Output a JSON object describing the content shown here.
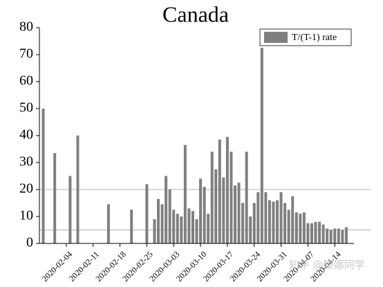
{
  "chart_data": {
    "type": "bar",
    "title": "Canada",
    "x": [
      "2020-01-29",
      "2020-02-01",
      "2020-02-05",
      "2020-02-07",
      "2020-02-15",
      "2020-02-21",
      "2020-02-25",
      "2020-02-27",
      "2020-02-28",
      "2020-02-29",
      "2020-03-01",
      "2020-03-02",
      "2020-03-03",
      "2020-03-04",
      "2020-03-05",
      "2020-03-06",
      "2020-03-07",
      "2020-03-08",
      "2020-03-09",
      "2020-03-10",
      "2020-03-11",
      "2020-03-12",
      "2020-03-13",
      "2020-03-14",
      "2020-03-15",
      "2020-03-16",
      "2020-03-17",
      "2020-03-18",
      "2020-03-19",
      "2020-03-20",
      "2020-03-21",
      "2020-03-22",
      "2020-03-23",
      "2020-03-24",
      "2020-03-25",
      "2020-03-26",
      "2020-03-27",
      "2020-03-28",
      "2020-03-29",
      "2020-03-30",
      "2020-03-31",
      "2020-04-01",
      "2020-04-02",
      "2020-04-03",
      "2020-04-04",
      "2020-04-05",
      "2020-04-06",
      "2020-04-07",
      "2020-04-08",
      "2020-04-09",
      "2020-04-10",
      "2020-04-11",
      "2020-04-12",
      "2020-04-13",
      "2020-04-14",
      "2020-04-15",
      "2020-04-16",
      "2020-04-17"
    ],
    "series": [
      {
        "name": "T/(T-1) rate",
        "color": "#7f7f7f",
        "values": [
          50,
          33.5,
          25,
          40,
          14.5,
          12.5,
          22,
          9,
          16.5,
          14.5,
          25,
          20,
          12.5,
          11,
          10,
          36.5,
          13,
          12,
          9,
          24,
          21,
          11,
          34,
          27.5,
          38.5,
          24.5,
          39.5,
          34,
          21.5,
          22.5,
          15,
          34,
          10,
          15,
          19,
          72.5,
          19,
          16,
          15.5,
          16,
          19,
          15,
          12.5,
          17.5,
          11.5,
          11,
          11.5,
          7.5,
          7.5,
          8,
          8,
          7,
          5.5,
          5,
          5.5,
          5.5,
          5,
          6
        ]
      }
    ],
    "xlim": [
      "2020-01-28",
      "2020-04-19"
    ],
    "xticks": [
      "2020-02-04",
      "2020-02-11",
      "2020-02-18",
      "2020-02-25",
      "2020-03-03",
      "2020-03-10",
      "2020-03-17",
      "2020-03-24",
      "2020-03-31",
      "2020-04-07",
      "2020-04-14"
    ],
    "ylim": [
      0,
      80
    ],
    "yticks": [
      0,
      10,
      20,
      30,
      40,
      50,
      60,
      70,
      80
    ],
    "reference_lines": [
      20,
      5
    ],
    "legend": "upper right",
    "watermark": "知乎 @颖娜同学"
  }
}
